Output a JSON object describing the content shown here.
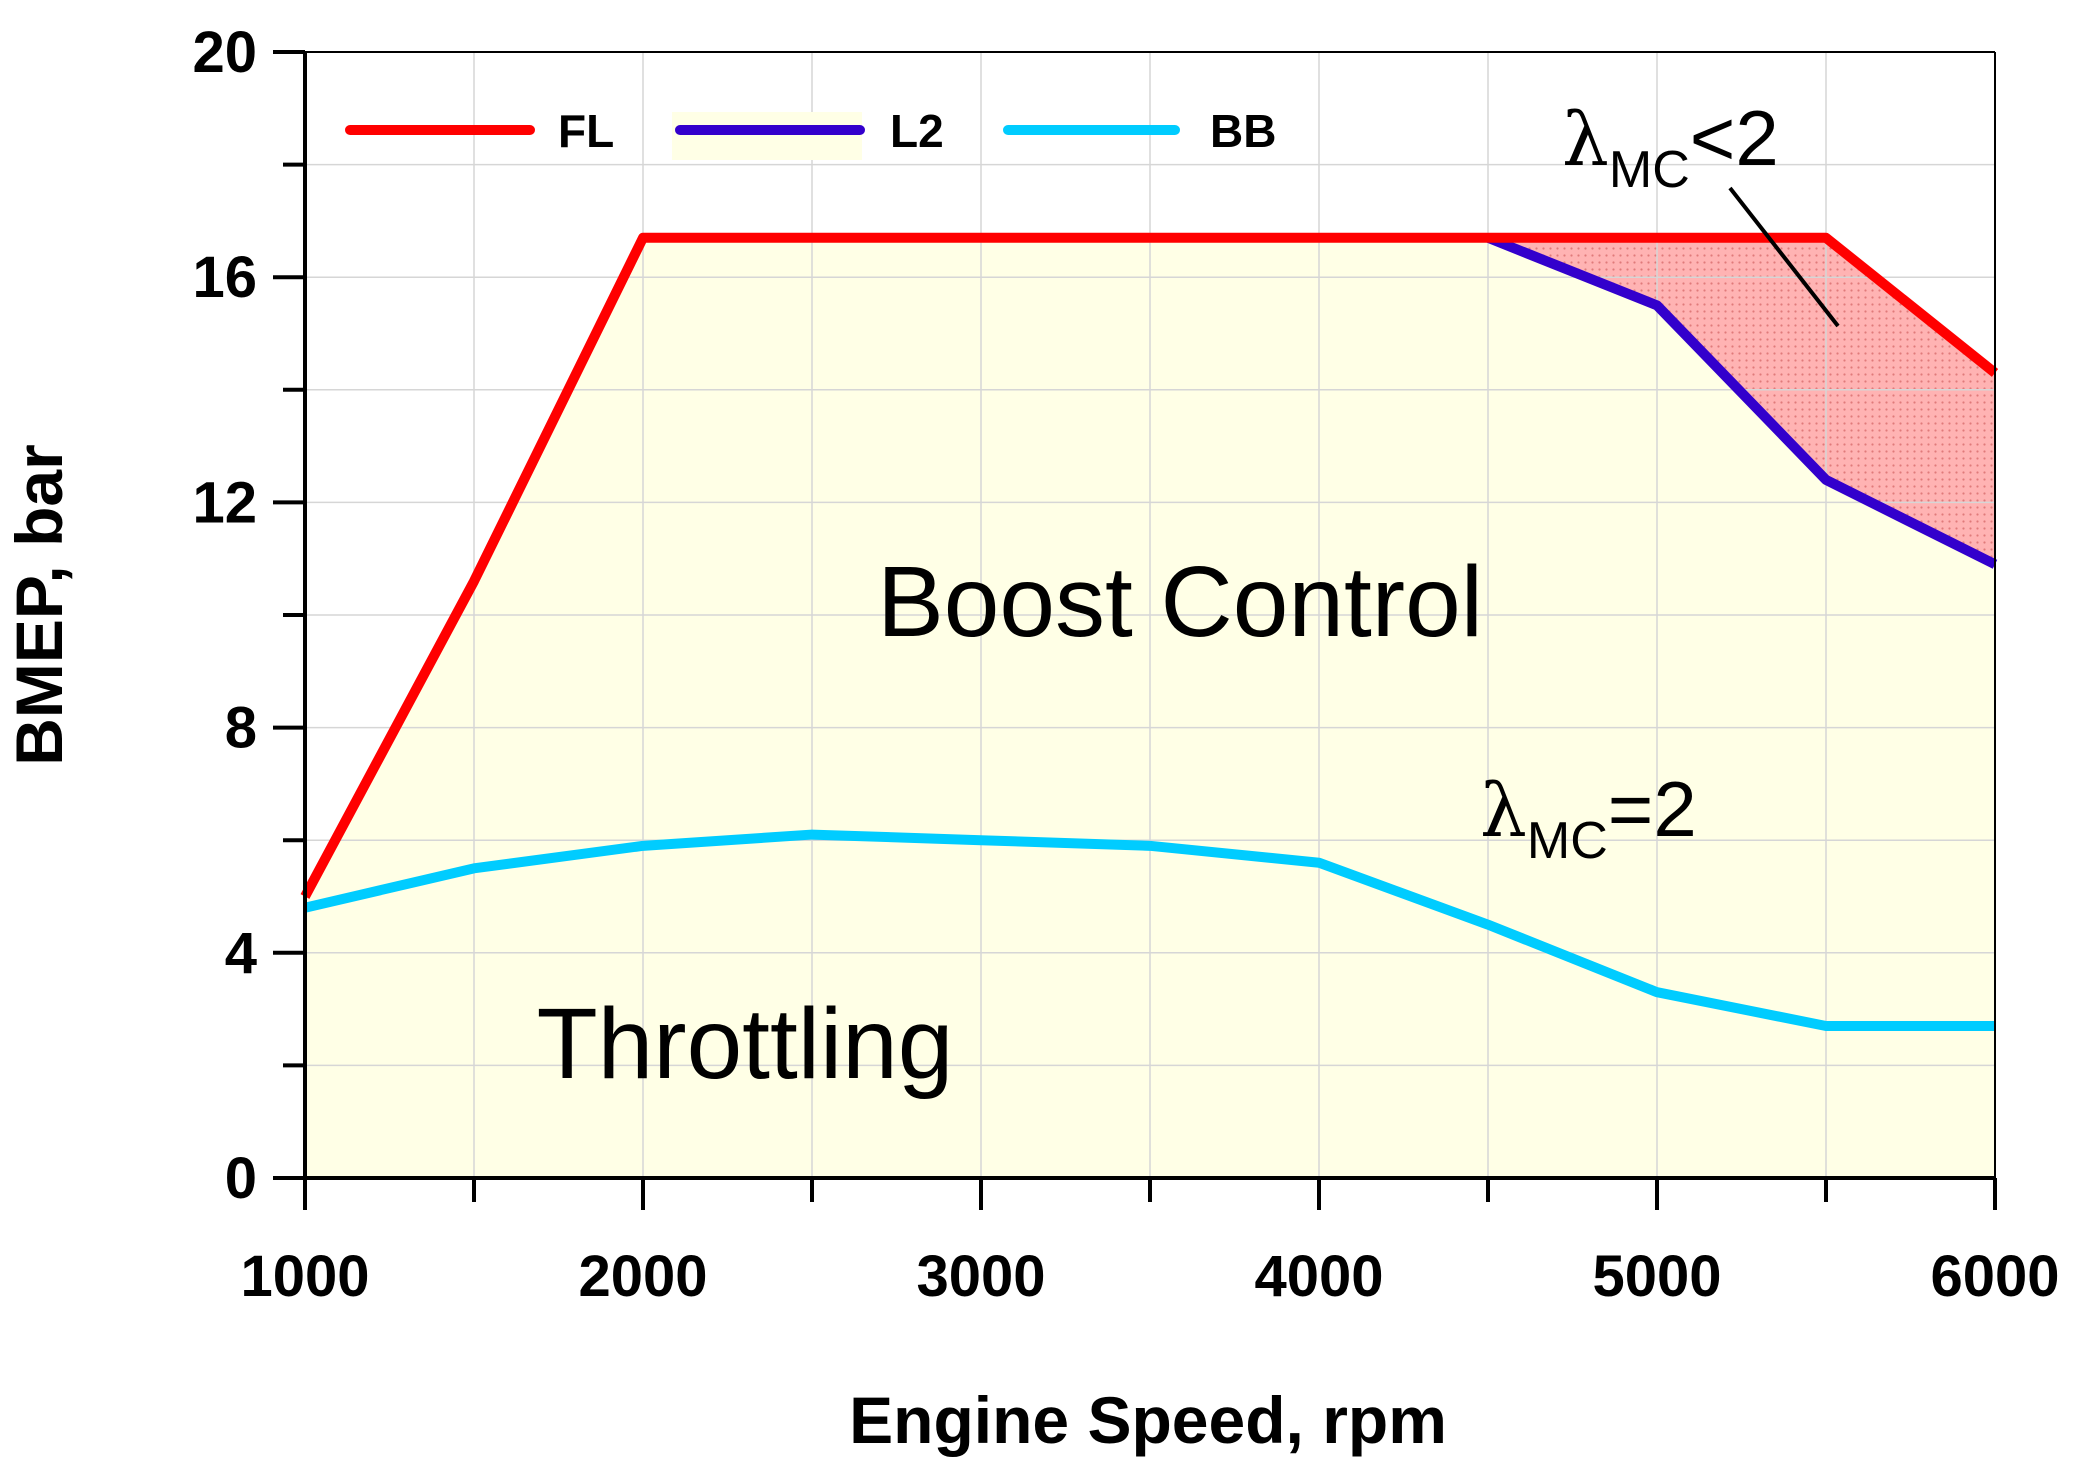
{
  "chart_data": {
    "type": "line",
    "title": "",
    "xlabel": "Engine Speed, rpm",
    "ylabel": "BMEP, bar",
    "xlim": [
      1000,
      6000
    ],
    "ylim": [
      0,
      20
    ],
    "xticks": [
      1000,
      2000,
      3000,
      4000,
      5000,
      6000
    ],
    "xtick_labels": [
      "1000",
      "2000",
      "3000",
      "4000",
      "5000",
      "6000"
    ],
    "yticks": [
      0,
      4,
      8,
      12,
      16,
      20
    ],
    "ytick_labels": [
      "0",
      "4",
      "8",
      "12",
      "16",
      "20"
    ],
    "x_minor_step": 500,
    "y_minor_step": 2,
    "grid": true,
    "legend_position": "top-left",
    "series": [
      {
        "name": "FL",
        "color": "#ff0000",
        "x": [
          1000,
          1500,
          2000,
          2500,
          3000,
          3500,
          4000,
          4500,
          5000,
          5500,
          6000
        ],
        "y": [
          5.0,
          10.6,
          16.7,
          16.7,
          16.7,
          16.7,
          16.7,
          16.7,
          16.7,
          16.7,
          14.3
        ]
      },
      {
        "name": "L2",
        "color": "#3300cc",
        "x": [
          4500,
          5000,
          5500,
          6000
        ],
        "y": [
          16.7,
          15.5,
          12.4,
          10.9
        ]
      },
      {
        "name": "BB",
        "color": "#00ccff",
        "x": [
          1000,
          1500,
          2000,
          2500,
          3000,
          3500,
          4000,
          4500,
          5000,
          5500,
          6000
        ],
        "y": [
          4.8,
          5.5,
          5.9,
          6.1,
          6.0,
          5.9,
          5.6,
          4.5,
          3.3,
          2.7,
          2.7
        ]
      }
    ],
    "regions": {
      "operating_fill": "#ffffe6",
      "lean_limit_fill": "#ffb3b3"
    },
    "annotations": {
      "boost_control": "Boost Control",
      "throttling": "Throttling",
      "lambda_lt": {
        "symbol": "λ",
        "sub": "MC",
        "rel": "<2"
      },
      "lambda_eq": {
        "symbol": "λ",
        "sub": "MC",
        "rel": "=2"
      }
    }
  }
}
